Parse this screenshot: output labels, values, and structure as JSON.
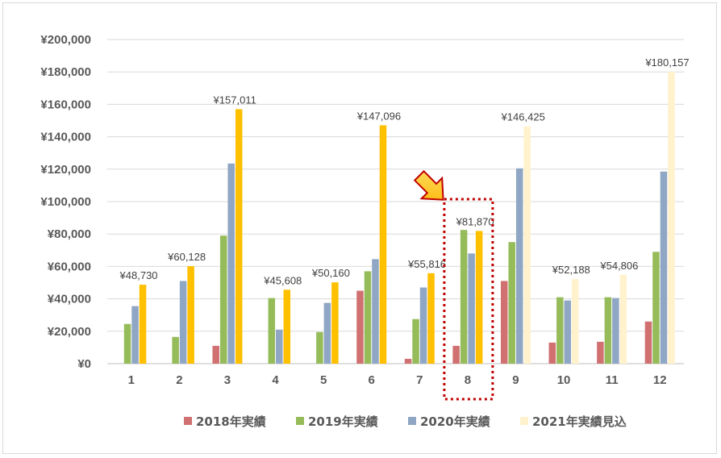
{
  "chart_data": {
    "type": "bar",
    "categories": [
      "1",
      "2",
      "3",
      "4",
      "5",
      "6",
      "7",
      "8",
      "9",
      "10",
      "11",
      "12"
    ],
    "ylim": [
      0,
      200000
    ],
    "yticks": [
      "¥0",
      "¥20,000",
      "¥40,000",
      "¥60,000",
      "¥80,000",
      "¥100,000",
      "¥120,000",
      "¥140,000",
      "¥160,000",
      "¥180,000",
      "¥200,000"
    ],
    "grid": true,
    "legend_position": "bottom",
    "series": [
      {
        "name": "2018年実績",
        "color": "#d07070",
        "values": [
          0,
          0,
          11000,
          0,
          0,
          45000,
          3000,
          11000,
          51000,
          13000,
          13500,
          26000
        ]
      },
      {
        "name": "2019年実績",
        "color": "#96bc5a",
        "values": [
          24500,
          16500,
          79000,
          40500,
          19500,
          57000,
          27500,
          82500,
          75000,
          41000,
          41000,
          69000
        ]
      },
      {
        "name": "2020年実績",
        "color": "#8fa6c4",
        "values": [
          35500,
          51000,
          123500,
          21000,
          37500,
          64500,
          47000,
          68000,
          120500,
          39000,
          40500,
          118500
        ]
      },
      {
        "name": "2021年実績見込",
        "color": "#ffc000",
        "values": [
          48730,
          60128,
          157011,
          45608,
          50160,
          147096,
          55816,
          81870,
          146425,
          52188,
          54806,
          180157
        ],
        "point_colors": [
          "#ffc000",
          "#ffc000",
          "#ffc000",
          "#ffc000",
          "#ffc000",
          "#ffc000",
          "#ffc000",
          "#ffc000",
          "#fff2cc",
          "#fff2cc",
          "#fff2cc",
          "#fff2cc"
        ]
      }
    ],
    "data_labels": [
      "¥48,730",
      "¥60,128",
      "¥157,011",
      "¥45,608",
      "¥50,160",
      "¥147,096",
      "¥55,816",
      "¥81,870",
      "¥146,425",
      "¥52,188",
      "¥54,806",
      "¥180,157"
    ],
    "highlight": {
      "category": "8",
      "style": "dotted box",
      "color": "#c00000",
      "marker": "arrow"
    }
  }
}
